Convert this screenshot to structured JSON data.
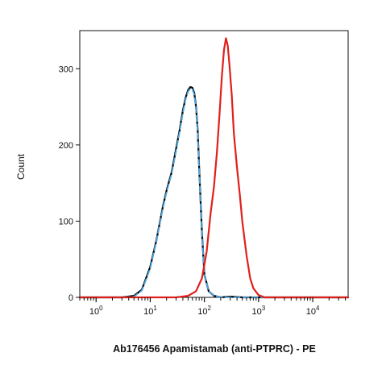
{
  "chart_data": {
    "type": "line",
    "title": "",
    "xlabel": "Ab176456 Apamistamab (anti-PTPRC) - PE",
    "ylabel": "Count",
    "xscale": "log",
    "xlim": [
      0.5,
      45000
    ],
    "ylim": [
      0,
      350
    ],
    "yticks": [
      0,
      100,
      200,
      300
    ],
    "xticks": [
      {
        "value": 1,
        "base": "10",
        "exp": "0"
      },
      {
        "value": 10,
        "base": "10",
        "exp": "1"
      },
      {
        "value": 100,
        "base": "10",
        "exp": "2"
      },
      {
        "value": 1000,
        "base": "10",
        "exp": "3"
      },
      {
        "value": 10000,
        "base": "10",
        "exp": "4"
      }
    ],
    "grid": false,
    "legend": "none",
    "series": [
      {
        "color": "#000000",
        "style": "solid",
        "x": [
          0.5,
          3,
          5,
          7,
          10,
          13,
          17,
          20,
          25,
          30,
          35,
          40,
          45,
          50,
          55,
          60,
          65,
          70,
          75,
          80,
          90,
          100,
          120,
          150,
          200,
          300,
          500,
          1000,
          45000
        ],
        "y": [
          0,
          0,
          2,
          10,
          40,
          75,
          118,
          140,
          165,
          195,
          220,
          245,
          262,
          272,
          276,
          275,
          268,
          250,
          220,
          170,
          85,
          30,
          8,
          2,
          0,
          1,
          0,
          0,
          0
        ]
      },
      {
        "color": "#4da6e0",
        "style": "dashed",
        "x": [
          0.5,
          3,
          5,
          7,
          10,
          13,
          17,
          20,
          25,
          30,
          35,
          40,
          45,
          50,
          55,
          60,
          65,
          70,
          75,
          80,
          90,
          100,
          120,
          150,
          200,
          300,
          500,
          1000,
          45000
        ],
        "y": [
          0,
          0,
          1,
          9,
          38,
          74,
          116,
          138,
          163,
          192,
          218,
          242,
          260,
          270,
          274,
          273,
          266,
          248,
          218,
          168,
          84,
          30,
          8,
          2,
          0,
          0,
          0,
          0,
          0
        ]
      },
      {
        "color": "#e0201b",
        "style": "solid",
        "x": [
          0.5,
          30,
          50,
          70,
          90,
          110,
          130,
          150,
          170,
          190,
          210,
          230,
          250,
          270,
          290,
          320,
          350,
          400,
          450,
          500,
          600,
          700,
          800,
          1000,
          1300,
          45000
        ],
        "y": [
          0,
          0,
          2,
          8,
          25,
          60,
          110,
          145,
          190,
          240,
          290,
          325,
          340,
          330,
          305,
          265,
          215,
          170,
          135,
          100,
          55,
          25,
          12,
          3,
          0,
          0
        ]
      }
    ]
  }
}
